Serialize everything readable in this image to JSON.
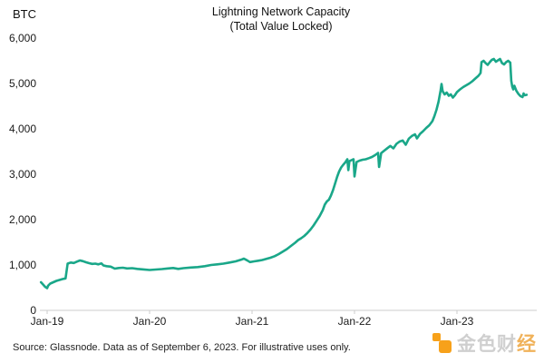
{
  "header": {
    "unit_label": "BTC",
    "title_line1": "Lightning Network Capacity",
    "title_line2": "(Total Value Locked)"
  },
  "footer": {
    "source_text": "Source: Glassnode. Data as of September 6, 2023. For illustrative uses only.",
    "logo": {
      "text_main": "金色财",
      "text_accent": "经",
      "icon_color": "#F7A11A",
      "text_color": "#CFCFCF"
    }
  },
  "chart_data": {
    "type": "line",
    "title": "Lightning Network Capacity (Total Value Locked)",
    "ylabel": "BTC",
    "xlabel": "",
    "ylim": [
      0,
      6000
    ],
    "xlim_years": [
      2018.94,
      2023.77
    ],
    "grid": false,
    "legend": "none",
    "line_color": "#1AA789",
    "axis_color": "#cccccc",
    "y_ticks": [
      {
        "label": "0",
        "value": 0
      },
      {
        "label": "1,000",
        "value": 1000
      },
      {
        "label": "2,000",
        "value": 2000
      },
      {
        "label": "3,000",
        "value": 3000
      },
      {
        "label": "4,000",
        "value": 4000
      },
      {
        "label": "5,000",
        "value": 5000
      },
      {
        "label": "6,000",
        "value": 6000
      }
    ],
    "x_ticks": [
      {
        "label": "Jan-19",
        "year": 2019
      },
      {
        "label": "Jan-20",
        "year": 2020
      },
      {
        "label": "Jan-21",
        "year": 2021
      },
      {
        "label": "Jan-22",
        "year": 2022
      },
      {
        "label": "Jan-23",
        "year": 2023
      }
    ],
    "series": [
      {
        "name": "Lightning Network capacity (BTC)",
        "points": [
          [
            2018.94,
            620
          ],
          [
            2018.96,
            570
          ],
          [
            2018.98,
            520
          ],
          [
            2019.0,
            490
          ],
          [
            2019.01,
            545
          ],
          [
            2019.03,
            590
          ],
          [
            2019.06,
            620
          ],
          [
            2019.09,
            650
          ],
          [
            2019.12,
            670
          ],
          [
            2019.15,
            690
          ],
          [
            2019.18,
            705
          ],
          [
            2019.2,
            1030
          ],
          [
            2019.23,
            1055
          ],
          [
            2019.26,
            1045
          ],
          [
            2019.29,
            1075
          ],
          [
            2019.32,
            1100
          ],
          [
            2019.35,
            1085
          ],
          [
            2019.38,
            1060
          ],
          [
            2019.41,
            1040
          ],
          [
            2019.44,
            1025
          ],
          [
            2019.47,
            1030
          ],
          [
            2019.5,
            1015
          ],
          [
            2019.53,
            1035
          ],
          [
            2019.55,
            990
          ],
          [
            2019.58,
            975
          ],
          [
            2019.62,
            965
          ],
          [
            2019.66,
            920
          ],
          [
            2019.7,
            935
          ],
          [
            2019.74,
            940
          ],
          [
            2019.78,
            925
          ],
          [
            2019.83,
            930
          ],
          [
            2019.88,
            915
          ],
          [
            2019.93,
            905
          ],
          [
            2020.0,
            890
          ],
          [
            2020.06,
            900
          ],
          [
            2020.12,
            910
          ],
          [
            2020.18,
            925
          ],
          [
            2020.23,
            935
          ],
          [
            2020.28,
            915
          ],
          [
            2020.33,
            930
          ],
          [
            2020.4,
            945
          ],
          [
            2020.47,
            955
          ],
          [
            2020.54,
            975
          ],
          [
            2020.6,
            1000
          ],
          [
            2020.66,
            1015
          ],
          [
            2020.72,
            1030
          ],
          [
            2020.78,
            1055
          ],
          [
            2020.84,
            1080
          ],
          [
            2020.89,
            1115
          ],
          [
            2020.92,
            1140
          ],
          [
            2020.95,
            1105
          ],
          [
            2020.98,
            1065
          ],
          [
            2021.02,
            1080
          ],
          [
            2021.06,
            1095
          ],
          [
            2021.1,
            1110
          ],
          [
            2021.14,
            1135
          ],
          [
            2021.18,
            1160
          ],
          [
            2021.22,
            1195
          ],
          [
            2021.26,
            1240
          ],
          [
            2021.3,
            1295
          ],
          [
            2021.34,
            1350
          ],
          [
            2021.38,
            1420
          ],
          [
            2021.42,
            1490
          ],
          [
            2021.45,
            1550
          ],
          [
            2021.48,
            1590
          ],
          [
            2021.51,
            1640
          ],
          [
            2021.54,
            1705
          ],
          [
            2021.57,
            1780
          ],
          [
            2021.6,
            1870
          ],
          [
            2021.63,
            1975
          ],
          [
            2021.66,
            2080
          ],
          [
            2021.69,
            2210
          ],
          [
            2021.71,
            2330
          ],
          [
            2021.73,
            2400
          ],
          [
            2021.75,
            2440
          ],
          [
            2021.77,
            2530
          ],
          [
            2021.79,
            2650
          ],
          [
            2021.81,
            2790
          ],
          [
            2021.83,
            2940
          ],
          [
            2021.85,
            3060
          ],
          [
            2021.87,
            3150
          ],
          [
            2021.89,
            3210
          ],
          [
            2021.91,
            3260
          ],
          [
            2021.93,
            3330
          ],
          [
            2021.94,
            3090
          ],
          [
            2021.95,
            3290
          ],
          [
            2021.97,
            3310
          ],
          [
            2021.99,
            3330
          ],
          [
            2022.0,
            2950
          ],
          [
            2022.02,
            3270
          ],
          [
            2022.05,
            3300
          ],
          [
            2022.08,
            3320
          ],
          [
            2022.11,
            3330
          ],
          [
            2022.14,
            3355
          ],
          [
            2022.17,
            3380
          ],
          [
            2022.2,
            3420
          ],
          [
            2022.23,
            3470
          ],
          [
            2022.24,
            3160
          ],
          [
            2022.26,
            3465
          ],
          [
            2022.29,
            3520
          ],
          [
            2022.32,
            3575
          ],
          [
            2022.35,
            3625
          ],
          [
            2022.38,
            3570
          ],
          [
            2022.41,
            3670
          ],
          [
            2022.44,
            3720
          ],
          [
            2022.47,
            3745
          ],
          [
            2022.5,
            3650
          ],
          [
            2022.53,
            3785
          ],
          [
            2022.56,
            3845
          ],
          [
            2022.59,
            3880
          ],
          [
            2022.61,
            3790
          ],
          [
            2022.64,
            3890
          ],
          [
            2022.67,
            3950
          ],
          [
            2022.7,
            4020
          ],
          [
            2022.73,
            4080
          ],
          [
            2022.76,
            4170
          ],
          [
            2022.78,
            4280
          ],
          [
            2022.8,
            4420
          ],
          [
            2022.82,
            4600
          ],
          [
            2022.84,
            4840
          ],
          [
            2022.85,
            4990
          ],
          [
            2022.86,
            4830
          ],
          [
            2022.88,
            4760
          ],
          [
            2022.9,
            4800
          ],
          [
            2022.92,
            4730
          ],
          [
            2022.94,
            4760
          ],
          [
            2022.96,
            4690
          ],
          [
            2022.98,
            4740
          ],
          [
            2023.0,
            4810
          ],
          [
            2023.03,
            4870
          ],
          [
            2023.06,
            4920
          ],
          [
            2023.09,
            4960
          ],
          [
            2023.12,
            5000
          ],
          [
            2023.15,
            5050
          ],
          [
            2023.18,
            5110
          ],
          [
            2023.21,
            5170
          ],
          [
            2023.23,
            5230
          ],
          [
            2023.24,
            5470
          ],
          [
            2023.26,
            5500
          ],
          [
            2023.28,
            5450
          ],
          [
            2023.3,
            5410
          ],
          [
            2023.32,
            5470
          ],
          [
            2023.34,
            5520
          ],
          [
            2023.36,
            5540
          ],
          [
            2023.38,
            5480
          ],
          [
            2023.4,
            5510
          ],
          [
            2023.42,
            5540
          ],
          [
            2023.44,
            5450
          ],
          [
            2023.46,
            5420
          ],
          [
            2023.48,
            5470
          ],
          [
            2023.5,
            5500
          ],
          [
            2023.52,
            5460
          ],
          [
            2023.53,
            5060
          ],
          [
            2023.54,
            4930
          ],
          [
            2023.55,
            4870
          ],
          [
            2023.56,
            4950
          ],
          [
            2023.58,
            4840
          ],
          [
            2023.6,
            4770
          ],
          [
            2023.62,
            4720
          ],
          [
            2023.64,
            4700
          ],
          [
            2023.65,
            4780
          ],
          [
            2023.66,
            4740
          ],
          [
            2023.68,
            4750
          ]
        ]
      }
    ]
  }
}
